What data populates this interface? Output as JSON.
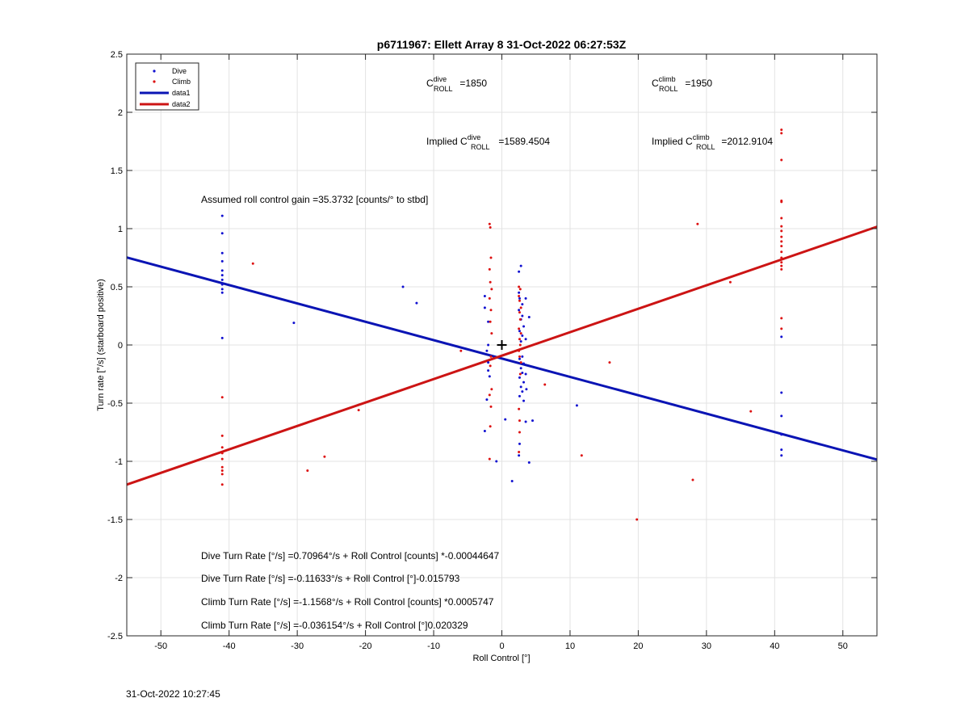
{
  "chart_data": {
    "type": "scatter",
    "title": "p6711967: Ellett Array 8 31-Oct-2022 06:27:53Z",
    "xlabel": "Roll Control [°]",
    "ylabel": "Turn rate [°/s] (starboard positive)",
    "xlim": [
      -55,
      55
    ],
    "ylim": [
      -2.5,
      2.5
    ],
    "xticks": [
      "-50",
      "-40",
      "-30",
      "-20",
      "-10",
      "0",
      "10",
      "20",
      "30",
      "40",
      "50"
    ],
    "yticks": [
      "-2.5",
      "-2",
      "-1.5",
      "-1",
      "-0.5",
      "0",
      "0.5",
      "1",
      "1.5",
      "2",
      "2.5"
    ],
    "grid": true,
    "legend_position": "top-left",
    "colors": {
      "dive": "#1010d0",
      "climb": "#dd1111",
      "data1": "#0a14b4",
      "data2": "#cc1414"
    },
    "series": [
      {
        "name": "Dive",
        "kind": "points",
        "points": [
          [
            -41.0,
            1.11
          ],
          [
            -41.0,
            0.96
          ],
          [
            -41.0,
            0.79
          ],
          [
            -41.0,
            0.72
          ],
          [
            -41.0,
            0.64
          ],
          [
            -41.0,
            0.6
          ],
          [
            -41.0,
            0.56
          ],
          [
            -41.0,
            0.52
          ],
          [
            -41.0,
            0.48
          ],
          [
            -41.0,
            0.45
          ],
          [
            -41.0,
            0.06
          ],
          [
            -30.5,
            0.19
          ],
          [
            -14.5,
            0.5
          ],
          [
            -12.5,
            0.36
          ],
          [
            -2.5,
            0.42
          ],
          [
            -2.5,
            0.32
          ],
          [
            -2.0,
            0.2
          ],
          [
            -2.0,
            0.0
          ],
          [
            -2.2,
            -0.05
          ],
          [
            -2.0,
            -0.15
          ],
          [
            -2.0,
            -0.22
          ],
          [
            -1.8,
            -0.27
          ],
          [
            -2.2,
            -0.47
          ],
          [
            -2.5,
            -0.74
          ],
          [
            -0.8,
            -1.0
          ],
          [
            0.5,
            -0.64
          ],
          [
            1.5,
            -1.17
          ],
          [
            2.5,
            0.63
          ],
          [
            2.8,
            0.68
          ],
          [
            2.5,
            0.45
          ],
          [
            2.6,
            0.4
          ],
          [
            3.0,
            0.35
          ],
          [
            2.5,
            0.3
          ],
          [
            3.0,
            0.25
          ],
          [
            2.8,
            0.22
          ],
          [
            3.2,
            0.16
          ],
          [
            2.6,
            0.12
          ],
          [
            3.0,
            0.08
          ],
          [
            2.8,
            0.03
          ],
          [
            3.0,
            -0.1
          ],
          [
            2.6,
            -0.12
          ],
          [
            3.2,
            -0.16
          ],
          [
            2.8,
            -0.2
          ],
          [
            3.0,
            -0.24
          ],
          [
            2.6,
            -0.28
          ],
          [
            3.2,
            -0.32
          ],
          [
            2.8,
            -0.36
          ],
          [
            3.0,
            -0.4
          ],
          [
            2.6,
            -0.44
          ],
          [
            3.2,
            -0.48
          ],
          [
            3.5,
            0.4
          ],
          [
            3.5,
            0.05
          ],
          [
            3.5,
            -0.25
          ],
          [
            3.6,
            -0.38
          ],
          [
            3.5,
            -0.66
          ],
          [
            4.0,
            0.24
          ],
          [
            4.5,
            -0.65
          ],
          [
            4.0,
            -1.01
          ],
          [
            2.6,
            -0.85
          ],
          [
            2.5,
            -0.95
          ],
          [
            11.0,
            -0.52
          ],
          [
            41.0,
            0.07
          ],
          [
            41.0,
            -0.41
          ],
          [
            41.0,
            -0.61
          ],
          [
            41.0,
            -0.77
          ],
          [
            41.0,
            -0.9
          ],
          [
            41.0,
            -0.95
          ]
        ]
      },
      {
        "name": "Climb",
        "kind": "points",
        "points": [
          [
            -36.5,
            0.7
          ],
          [
            -41.0,
            -0.45
          ],
          [
            -41.0,
            -0.78
          ],
          [
            -41.0,
            -0.88
          ],
          [
            -41.0,
            -0.93
          ],
          [
            -41.0,
            -0.98
          ],
          [
            -41.0,
            -1.05
          ],
          [
            -41.0,
            -1.08
          ],
          [
            -41.0,
            -1.11
          ],
          [
            -41.0,
            -1.2
          ],
          [
            -28.5,
            -1.08
          ],
          [
            -26.0,
            -0.96
          ],
          [
            -21.0,
            -0.56
          ],
          [
            -6.0,
            -0.05
          ],
          [
            -1.8,
            1.04
          ],
          [
            -1.7,
            1.01
          ],
          [
            -1.6,
            0.75
          ],
          [
            -1.8,
            0.65
          ],
          [
            -1.7,
            0.54
          ],
          [
            -1.5,
            0.48
          ],
          [
            -1.8,
            0.4
          ],
          [
            -1.6,
            0.3
          ],
          [
            -1.7,
            0.2
          ],
          [
            -1.5,
            0.1
          ],
          [
            -1.6,
            -0.1
          ],
          [
            -1.7,
            -0.18
          ],
          [
            -1.5,
            -0.38
          ],
          [
            -1.8,
            -0.43
          ],
          [
            -1.6,
            -0.53
          ],
          [
            -1.7,
            -0.7
          ],
          [
            -1.8,
            -0.98
          ],
          [
            2.5,
            0.5
          ],
          [
            2.7,
            0.48
          ],
          [
            2.5,
            0.42
          ],
          [
            2.6,
            0.38
          ],
          [
            2.8,
            0.32
          ],
          [
            2.6,
            0.28
          ],
          [
            2.7,
            0.22
          ],
          [
            2.5,
            0.14
          ],
          [
            2.8,
            0.1
          ],
          [
            2.6,
            0.05
          ],
          [
            2.7,
            0.0
          ],
          [
            2.5,
            -0.05
          ],
          [
            2.6,
            -0.1
          ],
          [
            2.8,
            -0.15
          ],
          [
            2.7,
            -0.25
          ],
          [
            2.5,
            -0.55
          ],
          [
            2.6,
            -0.75
          ],
          [
            2.5,
            -0.92
          ],
          [
            2.6,
            -0.65
          ],
          [
            6.3,
            -0.34
          ],
          [
            11.7,
            -0.95
          ],
          [
            15.8,
            -0.15
          ],
          [
            19.8,
            -1.5
          ],
          [
            28.0,
            -1.16
          ],
          [
            28.7,
            1.04
          ],
          [
            33.5,
            0.54
          ],
          [
            36.5,
            -0.57
          ],
          [
            41.0,
            1.85
          ],
          [
            41.0,
            1.82
          ],
          [
            41.0,
            1.59
          ],
          [
            41.0,
            1.24
          ],
          [
            41.0,
            1.23
          ],
          [
            41.0,
            1.09
          ],
          [
            41.0,
            1.02
          ],
          [
            41.0,
            0.98
          ],
          [
            41.0,
            0.93
          ],
          [
            41.0,
            0.89
          ],
          [
            41.0,
            0.85
          ],
          [
            41.0,
            0.8
          ],
          [
            41.0,
            0.75
          ],
          [
            41.0,
            0.71
          ],
          [
            41.0,
            0.68
          ],
          [
            41.0,
            0.65
          ],
          [
            41.0,
            0.23
          ],
          [
            41.0,
            0.14
          ]
        ]
      },
      {
        "name": "data1",
        "kind": "line",
        "x": [
          -55,
          55
        ],
        "y": [
          0.752,
          -0.985
        ]
      },
      {
        "name": "data2",
        "kind": "line",
        "x": [
          -55,
          55
        ],
        "y": [
          -1.2,
          1.0165
        ]
      }
    ],
    "marker": {
      "x": 0,
      "y": 0,
      "symbol": "+"
    },
    "annotations": {
      "c_dive": {
        "prefix": "C",
        "sup": "dive",
        "sub": "ROLL",
        "suffix": " =1850"
      },
      "c_climb": {
        "prefix": "C",
        "sup": "climb",
        "sub": "ROLL",
        "suffix": " =1950"
      },
      "implied_dive": {
        "prefix": "Implied C",
        "sup": "dive",
        "sub": "ROLL",
        "suffix": " =1589.4504"
      },
      "implied_climb": {
        "prefix": "Implied C",
        "sup": "climb",
        "sub": "ROLL",
        "suffix": " =2012.9104"
      },
      "gain": "Assumed roll control gain =35.3732 [counts/° to stbd]",
      "eq1": "Dive Turn Rate [°/s] =0.70964°/s + Roll Control [counts] *-0.00044647",
      "eq2": "Dive Turn Rate [°/s] =-0.11633°/s + Roll Control [°]-0.015793",
      "eq3": "Climb Turn Rate [°/s] =-1.1568°/s + Roll Control [counts] *0.0005747",
      "eq4": "Climb Turn Rate [°/s] =-0.036154°/s + Roll Control [°]0.020329"
    }
  },
  "footer": {
    "timestamp": "31-Oct-2022 10:27:45"
  }
}
